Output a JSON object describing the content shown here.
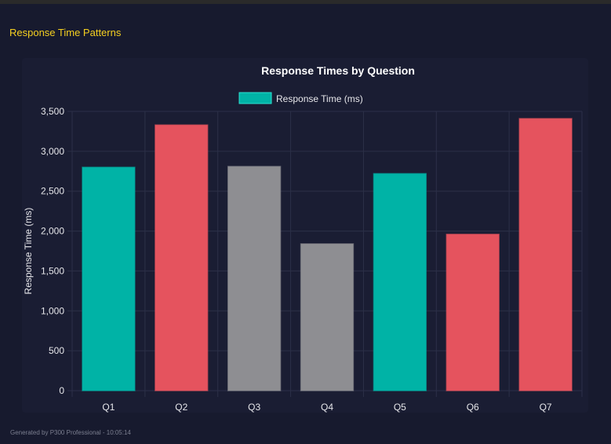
{
  "section_title": "Response Time Patterns",
  "footer": "Generated by P300 Professional - 10:05:14",
  "chart_data": {
    "type": "bar",
    "title": "Response Times by Question",
    "legend": {
      "label": "Response Time (ms)",
      "placement": "top",
      "color": "#00b3a6"
    },
    "ylabel": "Response Time (ms)",
    "xlabel": "",
    "ylim": [
      0,
      3500
    ],
    "yticks": [
      0,
      500,
      1000,
      1500,
      2000,
      2500,
      3000,
      3500
    ],
    "ytick_labels": [
      "0",
      "500",
      "1,000",
      "1,500",
      "2,000",
      "2,500",
      "3,000",
      "3,500"
    ],
    "grid": true,
    "categories": [
      "Q1",
      "Q2",
      "Q3",
      "Q4",
      "Q5",
      "Q6",
      "Q7"
    ],
    "values": [
      2800,
      3330,
      2810,
      1840,
      2720,
      1960,
      3410
    ],
    "colors": [
      "#00b3a6",
      "#e5535e",
      "#8e8e92",
      "#8e8e92",
      "#00b3a6",
      "#e5535e",
      "#e5535e"
    ]
  }
}
